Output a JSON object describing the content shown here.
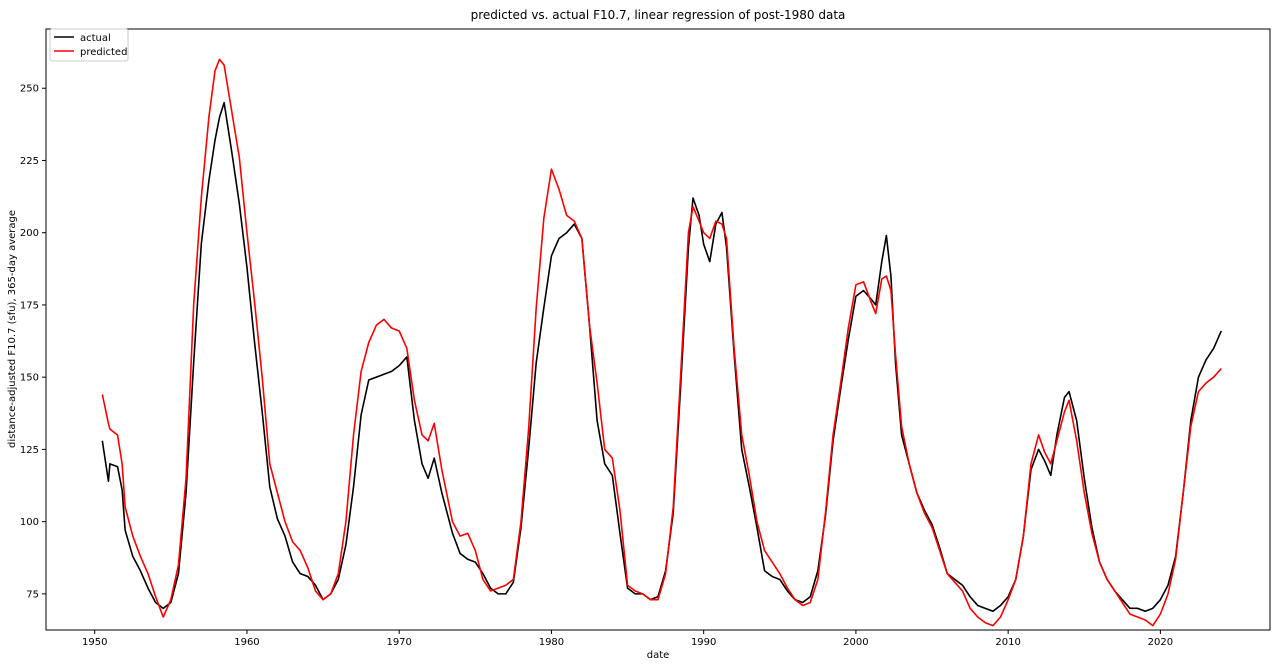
{
  "chart_data": {
    "type": "line",
    "title": "predicted vs. actual F10.7, linear regression of post-1980 data",
    "xlabel": "date",
    "ylabel": "distance-adjusted F10.7 (sfu), 365-day average",
    "xlim": [
      1946.8,
      2027.2
    ],
    "ylim": [
      62.5,
      270.5
    ],
    "x_ticks": [
      1950,
      1960,
      1970,
      1980,
      1990,
      2000,
      2010,
      2020
    ],
    "y_ticks": [
      75,
      100,
      125,
      150,
      175,
      200,
      225,
      250
    ],
    "grid": false,
    "legend_position": "top-left",
    "series": [
      {
        "name": "actual",
        "color": "#000000",
        "x": [
          1950.5,
          1950.9,
          1951.0,
          1951.5,
          1951.8,
          1952.0,
          1952.5,
          1953.0,
          1953.5,
          1954.0,
          1954.5,
          1955.0,
          1955.5,
          1956.0,
          1956.5,
          1957.0,
          1957.5,
          1957.9,
          1958.2,
          1958.5,
          1959.0,
          1959.5,
          1960.0,
          1960.5,
          1961.0,
          1961.5,
          1962.0,
          1962.5,
          1963.0,
          1963.5,
          1964.0,
          1964.5,
          1965.0,
          1965.5,
          1966.0,
          1966.5,
          1967.0,
          1967.5,
          1968.0,
          1968.5,
          1969.0,
          1969.5,
          1970.0,
          1970.5,
          1971.0,
          1971.5,
          1971.9,
          1972.3,
          1972.8,
          1973.5,
          1974.0,
          1974.5,
          1975.0,
          1975.5,
          1976.0,
          1976.5,
          1977.0,
          1977.5,
          1978.0,
          1978.5,
          1979.0,
          1979.5,
          1980.0,
          1980.5,
          1981.0,
          1981.5,
          1982.0,
          1982.5,
          1983.0,
          1983.5,
          1984.0,
          1984.5,
          1985.0,
          1985.5,
          1986.0,
          1986.5,
          1987.0,
          1987.5,
          1988.0,
          1988.5,
          1989.0,
          1989.3,
          1989.7,
          1990.0,
          1990.4,
          1990.8,
          1991.2,
          1991.5,
          1992.0,
          1992.5,
          1993.0,
          1993.5,
          1994.0,
          1994.5,
          1995.0,
          1995.5,
          1996.0,
          1996.5,
          1997.0,
          1997.5,
          1998.0,
          1998.5,
          1999.0,
          1999.5,
          2000.0,
          2000.5,
          2001.0,
          2001.3,
          2001.7,
          2002.0,
          2002.3,
          2002.6,
          2003.0,
          2003.5,
          2004.0,
          2004.5,
          2005.0,
          2005.5,
          2006.0,
          2006.5,
          2007.0,
          2007.5,
          2008.0,
          2008.5,
          2009.0,
          2009.5,
          2010.0,
          2010.5,
          2011.0,
          2011.5,
          2012.0,
          2012.4,
          2012.8,
          2013.2,
          2013.7,
          2014.0,
          2014.5,
          2015.0,
          2015.5,
          2016.0,
          2016.5,
          2017.0,
          2017.5,
          2018.0,
          2018.5,
          2019.0,
          2019.5,
          2020.0,
          2020.5,
          2021.0,
          2021.5,
          2022.0,
          2022.5,
          2023.0,
          2023.5,
          2024.0
        ],
        "values": [
          128,
          114,
          120,
          119,
          111,
          97,
          88,
          83,
          77,
          72,
          70,
          72,
          82,
          110,
          155,
          196,
          218,
          232,
          240,
          245,
          228,
          210,
          188,
          162,
          138,
          112,
          101,
          95,
          86,
          82,
          81,
          78,
          73,
          75,
          80,
          92,
          112,
          137,
          149,
          150,
          151,
          152,
          154,
          157,
          135,
          120,
          115,
          122,
          110,
          96,
          89,
          87,
          86,
          82,
          77,
          75,
          75,
          79,
          98,
          125,
          155,
          174,
          192,
          198,
          200,
          203,
          198,
          168,
          135,
          120,
          116,
          96,
          77,
          75,
          75,
          73,
          74,
          83,
          103,
          148,
          195,
          212,
          206,
          196,
          190,
          203,
          207,
          195,
          158,
          125,
          112,
          98,
          83,
          81,
          80,
          76,
          73,
          72,
          74,
          83,
          102,
          128,
          146,
          163,
          178,
          180,
          177,
          175,
          190,
          199,
          185,
          155,
          130,
          120,
          110,
          104,
          99,
          91,
          82,
          80,
          78,
          74,
          71,
          70,
          69,
          71,
          74,
          80,
          95,
          118,
          125,
          121,
          116,
          130,
          143,
          145,
          135,
          115,
          98,
          86,
          80,
          76,
          73,
          70,
          70,
          69,
          70,
          73,
          78,
          88,
          110,
          135,
          150,
          156,
          160,
          166
        ]
      },
      {
        "name": "predicted",
        "color": "#ff0000",
        "x": [
          1950.5,
          1950.9,
          1951.0,
          1951.5,
          1951.8,
          1952.0,
          1952.5,
          1953.0,
          1953.5,
          1954.0,
          1954.5,
          1955.0,
          1955.5,
          1956.0,
          1956.5,
          1957.0,
          1957.5,
          1957.9,
          1958.2,
          1958.5,
          1959.0,
          1959.5,
          1960.0,
          1960.5,
          1961.0,
          1961.5,
          1962.0,
          1962.5,
          1963.0,
          1963.5,
          1964.0,
          1964.5,
          1965.0,
          1965.5,
          1966.0,
          1966.5,
          1967.0,
          1967.5,
          1968.0,
          1968.5,
          1969.0,
          1969.5,
          1970.0,
          1970.5,
          1971.0,
          1971.5,
          1971.9,
          1972.3,
          1972.8,
          1973.5,
          1974.0,
          1974.5,
          1975.0,
          1975.5,
          1976.0,
          1976.5,
          1977.0,
          1977.5,
          1978.0,
          1978.5,
          1979.0,
          1979.5,
          1980.0,
          1980.5,
          1981.0,
          1981.5,
          1982.0,
          1982.5,
          1983.0,
          1983.5,
          1984.0,
          1984.5,
          1985.0,
          1985.5,
          1986.0,
          1986.5,
          1987.0,
          1987.5,
          1988.0,
          1988.5,
          1989.0,
          1989.3,
          1989.7,
          1990.0,
          1990.4,
          1990.8,
          1991.2,
          1991.5,
          1992.0,
          1992.5,
          1993.0,
          1993.5,
          1994.0,
          1994.5,
          1995.0,
          1995.5,
          1996.0,
          1996.5,
          1997.0,
          1997.5,
          1998.0,
          1998.5,
          1999.0,
          1999.5,
          2000.0,
          2000.5,
          2001.0,
          2001.3,
          2001.7,
          2002.0,
          2002.3,
          2002.6,
          2003.0,
          2003.5,
          2004.0,
          2004.5,
          2005.0,
          2005.5,
          2006.0,
          2006.5,
          2007.0,
          2007.5,
          2008.0,
          2008.5,
          2009.0,
          2009.5,
          2010.0,
          2010.5,
          2011.0,
          2011.5,
          2012.0,
          2012.4,
          2012.8,
          2013.2,
          2013.7,
          2014.0,
          2014.5,
          2015.0,
          2015.5,
          2016.0,
          2016.5,
          2017.0,
          2017.5,
          2018.0,
          2018.5,
          2019.0,
          2019.5,
          2020.0,
          2020.5,
          2021.0,
          2021.5,
          2022.0,
          2022.5,
          2023.0,
          2023.5,
          2024.0
        ],
        "values": [
          144,
          134,
          132,
          130,
          120,
          105,
          95,
          88,
          82,
          74,
          67,
          73,
          85,
          115,
          175,
          212,
          240,
          256,
          260,
          258,
          242,
          226,
          200,
          176,
          150,
          120,
          110,
          100,
          93,
          90,
          84,
          76,
          73,
          75,
          82,
          100,
          130,
          152,
          162,
          168,
          170,
          167,
          166,
          160,
          142,
          130,
          128,
          134,
          118,
          100,
          95,
          96,
          90,
          80,
          76,
          77,
          78,
          80,
          100,
          132,
          174,
          205,
          222,
          215,
          206,
          204,
          198,
          168,
          148,
          125,
          122,
          104,
          78,
          76,
          75,
          73,
          73,
          82,
          105,
          152,
          200,
          209,
          204,
          200,
          198,
          204,
          203,
          198,
          160,
          130,
          116,
          100,
          90,
          86,
          82,
          77,
          73,
          71,
          72,
          80,
          103,
          130,
          148,
          167,
          182,
          183,
          176,
          172,
          184,
          185,
          180,
          158,
          133,
          120,
          110,
          103,
          98,
          90,
          82,
          79,
          76,
          70,
          67,
          65,
          64,
          67,
          73,
          80,
          95,
          120,
          130,
          124,
          120,
          128,
          138,
          142,
          128,
          110,
          96,
          86,
          80,
          76,
          72,
          68,
          67,
          66,
          64,
          68,
          75,
          87,
          110,
          133,
          145,
          148,
          150,
          153
        ]
      }
    ]
  }
}
